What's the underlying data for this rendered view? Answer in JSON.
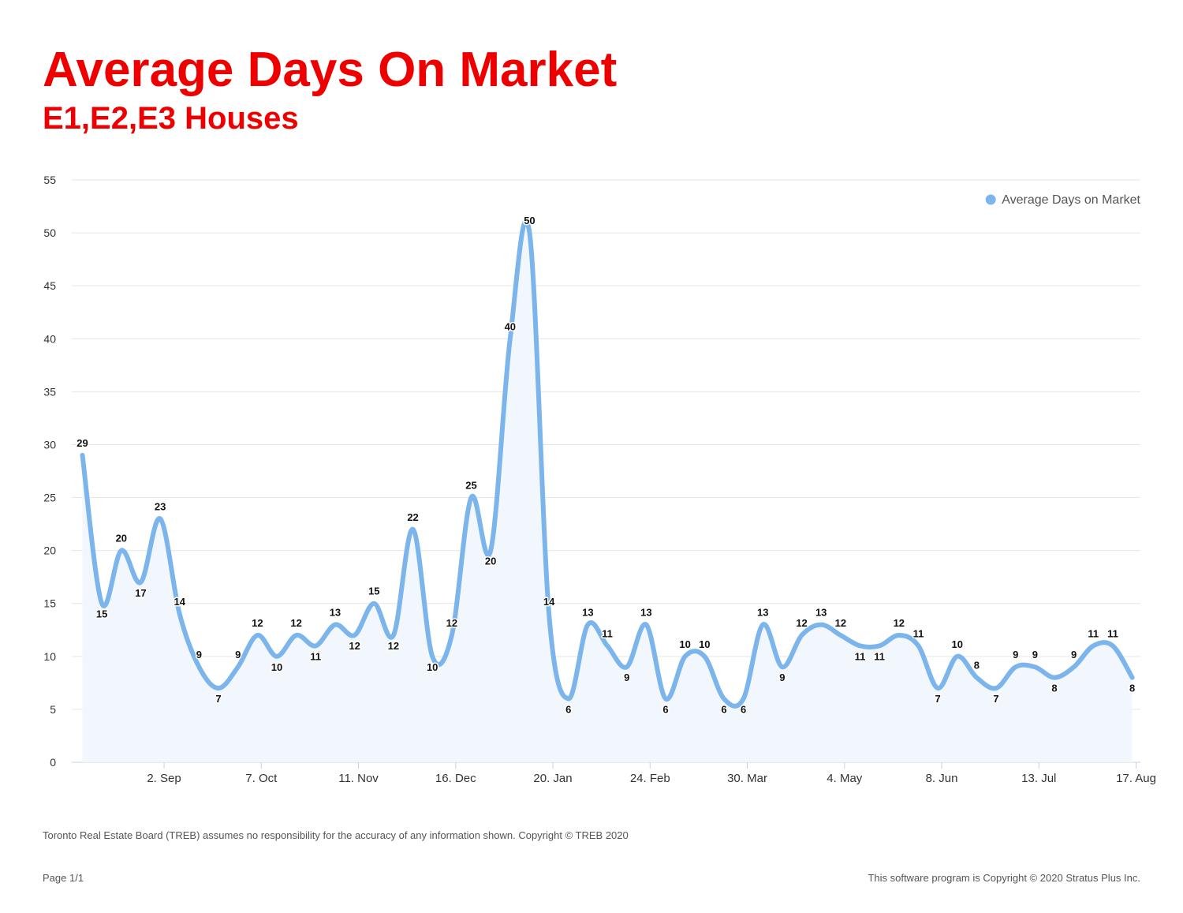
{
  "chart_data": {
    "type": "area",
    "title": "Average Days On Market",
    "subtitle": "E1,E2,E3 Houses",
    "xlabel": "",
    "ylabel": "",
    "ylim": [
      0,
      55
    ],
    "yticks": [
      0,
      5,
      10,
      15,
      20,
      25,
      30,
      35,
      40,
      45,
      50,
      55
    ],
    "grid": true,
    "legend_position": "top-right",
    "x_tick_labels": [
      "2. Sep",
      "7. Oct",
      "11. Nov",
      "16. Dec",
      "20. Jan",
      "24. Feb",
      "30. Mar",
      "4. May",
      "8. Jun",
      "13. Jul",
      "17. Aug"
    ],
    "x_tick_indices": [
      4.2,
      9.2,
      14.2,
      19.2,
      24.2,
      29.2,
      34.2,
      39.2,
      44.2,
      49.2,
      54.2
    ],
    "series": [
      {
        "name": "Average Days on Market",
        "color": "#7cb5ec",
        "fill": "#f2f7fd",
        "values": [
          29,
          15,
          20,
          17,
          23,
          14,
          9,
          7,
          9,
          12,
          10,
          12,
          11,
          13,
          12,
          15,
          12,
          22,
          10,
          12,
          25,
          20,
          40,
          50,
          14,
          6,
          13,
          11,
          9,
          13,
          6,
          10,
          10,
          6,
          6,
          13,
          9,
          12,
          13,
          12,
          11,
          11,
          12,
          11,
          7,
          10,
          8,
          7,
          9,
          9,
          8,
          9,
          11,
          11,
          8
        ]
      }
    ]
  },
  "footer": {
    "disclaimer": "Toronto Real Estate Board (TREB) assumes no responsibility for the accuracy of any information shown. Copyright © TREB 2020",
    "page": "Page 1/1",
    "copyright": "This software program is Copyright © 2020 Stratus Plus Inc."
  }
}
